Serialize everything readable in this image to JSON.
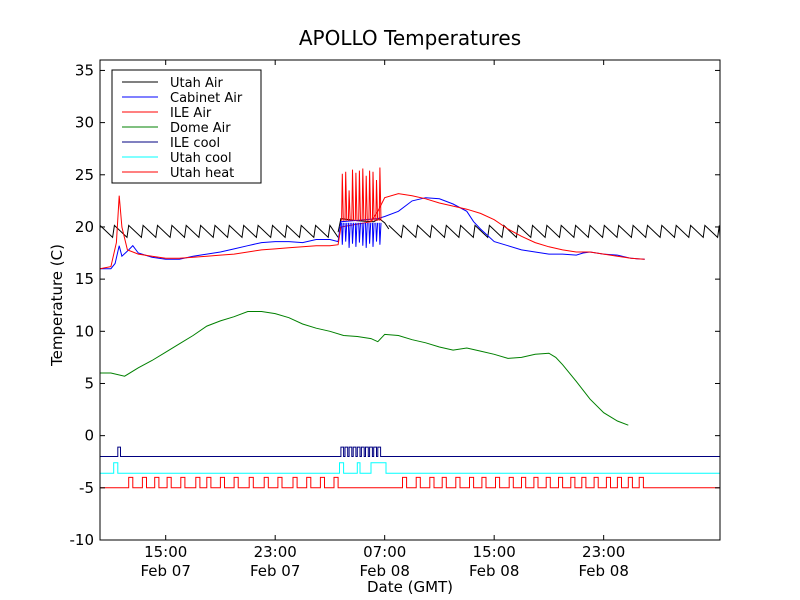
{
  "chart_data": {
    "type": "line",
    "title": "APOLLO Temperatures",
    "xlabel": "Date (GMT)",
    "ylabel": "Temperature (C)",
    "ylim": [
      -10,
      36
    ],
    "xlim": [
      10.2,
      55.5
    ],
    "grid": false,
    "legend_position": "top-left",
    "yticks": [
      -10,
      -5,
      0,
      5,
      10,
      15,
      20,
      25,
      30,
      35
    ],
    "xticks": [
      {
        "x": 15,
        "line1": "15:00",
        "line2": "Feb 07"
      },
      {
        "x": 23,
        "line1": "23:00",
        "line2": "Feb 07"
      },
      {
        "x": 31,
        "line1": "07:00",
        "line2": "Feb 08"
      },
      {
        "x": 39,
        "line1": "15:00",
        "line2": "Feb 08"
      },
      {
        "x": 47,
        "line1": "23:00",
        "line2": "Feb 08"
      }
    ],
    "x_units": "hours since Feb 07 00:00 GMT",
    "series": [
      {
        "name": "Utah Air",
        "color": "#000000",
        "kind": "sawtooth",
        "base": 19.2,
        "amp": 1.0,
        "period": 1.05,
        "segments": [
          [
            10.2,
            27.6
          ],
          [
            31.3,
            55.5
          ]
        ],
        "points": [
          [
            27.6,
            19.5
          ],
          [
            27.8,
            20.8
          ],
          [
            29.0,
            20.6
          ],
          [
            30.2,
            20.5
          ],
          [
            30.6,
            20.8
          ],
          [
            31.0,
            20.4
          ],
          [
            31.3,
            19.8
          ]
        ]
      },
      {
        "name": "Cabinet Air",
        "color": "#0000ff",
        "kind": "line",
        "points": [
          [
            10.2,
            16.0
          ],
          [
            11.0,
            16.0
          ],
          [
            11.3,
            16.5
          ],
          [
            11.6,
            18.2
          ],
          [
            11.8,
            17.2
          ],
          [
            12.3,
            17.8
          ],
          [
            12.6,
            18.2
          ],
          [
            13.0,
            17.5
          ],
          [
            14.0,
            17.1
          ],
          [
            15.0,
            16.9
          ],
          [
            16.0,
            16.9
          ],
          [
            17.0,
            17.2
          ],
          [
            18.0,
            17.4
          ],
          [
            19.0,
            17.6
          ],
          [
            20.0,
            17.9
          ],
          [
            21.0,
            18.2
          ],
          [
            22.0,
            18.5
          ],
          [
            23.0,
            18.6
          ],
          [
            24.0,
            18.6
          ],
          [
            25.0,
            18.5
          ],
          [
            26.0,
            18.8
          ],
          [
            27.0,
            18.8
          ],
          [
            27.6,
            18.6
          ],
          [
            27.8,
            20.5
          ],
          [
            30.5,
            20.8
          ],
          [
            31.0,
            21.0
          ],
          [
            32.0,
            21.5
          ],
          [
            33.0,
            22.5
          ],
          [
            34.0,
            22.8
          ],
          [
            35.0,
            22.7
          ],
          [
            36.0,
            22.2
          ],
          [
            37.0,
            21.5
          ],
          [
            37.5,
            20.5
          ],
          [
            38.0,
            19.8
          ],
          [
            38.5,
            19.2
          ],
          [
            39.0,
            18.6
          ],
          [
            40.0,
            18.2
          ],
          [
            41.0,
            17.8
          ],
          [
            42.0,
            17.6
          ],
          [
            43.0,
            17.4
          ],
          [
            44.0,
            17.4
          ],
          [
            45.0,
            17.3
          ],
          [
            45.5,
            17.5
          ],
          [
            46.0,
            17.6
          ],
          [
            47.0,
            17.4
          ],
          [
            48.0,
            17.3
          ],
          [
            49.0,
            17.0
          ],
          [
            50.0,
            16.9
          ]
        ]
      },
      {
        "name": "ILE Air",
        "color": "#ff0000",
        "kind": "line",
        "points": [
          [
            10.2,
            16.0
          ],
          [
            11.0,
            16.2
          ],
          [
            11.4,
            18.5
          ],
          [
            11.6,
            23.0
          ],
          [
            11.8,
            20.0
          ],
          [
            12.2,
            17.8
          ],
          [
            13.0,
            17.4
          ],
          [
            14.0,
            17.2
          ],
          [
            15.0,
            17.0
          ],
          [
            16.0,
            17.0
          ],
          [
            17.0,
            17.1
          ],
          [
            18.0,
            17.2
          ],
          [
            19.0,
            17.3
          ],
          [
            20.0,
            17.4
          ],
          [
            21.0,
            17.6
          ],
          [
            22.0,
            17.8
          ],
          [
            23.0,
            17.9
          ],
          [
            24.0,
            18.0
          ],
          [
            25.0,
            18.1
          ],
          [
            26.0,
            18.2
          ],
          [
            27.0,
            18.2
          ],
          [
            27.6,
            18.3
          ],
          [
            27.8,
            20.0
          ],
          [
            30.0,
            20.5
          ],
          [
            30.5,
            21.5
          ],
          [
            31.0,
            22.8
          ],
          [
            32.0,
            23.2
          ],
          [
            33.0,
            23.0
          ],
          [
            34.0,
            22.7
          ],
          [
            35.0,
            22.3
          ],
          [
            36.0,
            22.0
          ],
          [
            37.0,
            21.7
          ],
          [
            38.0,
            21.3
          ],
          [
            39.0,
            20.7
          ],
          [
            40.0,
            19.8
          ],
          [
            41.0,
            19.1
          ],
          [
            42.0,
            18.5
          ],
          [
            43.0,
            18.1
          ],
          [
            44.0,
            17.8
          ],
          [
            45.0,
            17.6
          ],
          [
            46.0,
            17.6
          ],
          [
            47.0,
            17.4
          ],
          [
            48.0,
            17.2
          ],
          [
            49.0,
            17.0
          ],
          [
            50.0,
            16.9
          ]
        ]
      },
      {
        "name": "Dome Air",
        "color": "#008000",
        "kind": "line",
        "points": [
          [
            10.2,
            6.0
          ],
          [
            11.0,
            6.0
          ],
          [
            12.0,
            5.7
          ],
          [
            13.0,
            6.5
          ],
          [
            14.0,
            7.2
          ],
          [
            15.0,
            8.0
          ],
          [
            16.0,
            8.8
          ],
          [
            17.0,
            9.6
          ],
          [
            18.0,
            10.5
          ],
          [
            19.0,
            11.0
          ],
          [
            20.0,
            11.4
          ],
          [
            21.0,
            11.9
          ],
          [
            22.0,
            11.9
          ],
          [
            23.0,
            11.7
          ],
          [
            24.0,
            11.3
          ],
          [
            25.0,
            10.7
          ],
          [
            26.0,
            10.3
          ],
          [
            27.0,
            10.0
          ],
          [
            28.0,
            9.6
          ],
          [
            29.0,
            9.5
          ],
          [
            30.0,
            9.3
          ],
          [
            30.5,
            9.0
          ],
          [
            31.0,
            9.7
          ],
          [
            32.0,
            9.6
          ],
          [
            33.0,
            9.2
          ],
          [
            34.0,
            8.9
          ],
          [
            35.0,
            8.5
          ],
          [
            36.0,
            8.2
          ],
          [
            37.0,
            8.4
          ],
          [
            38.0,
            8.1
          ],
          [
            39.0,
            7.8
          ],
          [
            40.0,
            7.4
          ],
          [
            41.0,
            7.5
          ],
          [
            42.0,
            7.8
          ],
          [
            43.0,
            7.9
          ],
          [
            43.5,
            7.5
          ],
          [
            44.0,
            6.8
          ],
          [
            45.0,
            5.2
          ],
          [
            46.0,
            3.5
          ],
          [
            47.0,
            2.2
          ],
          [
            48.0,
            1.4
          ],
          [
            48.8,
            1.0
          ]
        ]
      },
      {
        "name": "ILE cool",
        "color": "#000080",
        "kind": "step",
        "base": -2.0,
        "high": -1.1,
        "pulses": [
          [
            11.5,
            11.7
          ],
          [
            27.8,
            28.0
          ],
          [
            28.1,
            28.3
          ],
          [
            28.4,
            28.6
          ],
          [
            28.7,
            28.9
          ],
          [
            29.0,
            29.2
          ],
          [
            29.3,
            29.5
          ],
          [
            29.6,
            29.8
          ],
          [
            29.9,
            30.1
          ],
          [
            30.2,
            30.4
          ],
          [
            30.5,
            30.7
          ]
        ]
      },
      {
        "name": "Utah cool",
        "color": "#00ffff",
        "kind": "step",
        "base": -3.6,
        "high": -2.6,
        "pulses": [
          [
            11.2,
            11.5
          ],
          [
            27.7,
            28.0
          ],
          [
            29.0,
            29.2
          ],
          [
            30.0,
            31.1
          ]
        ]
      },
      {
        "name": "Utah heat",
        "color": "#ff0000",
        "kind": "step",
        "base": -5.0,
        "high": -4.0,
        "pulses": [
          [
            12.3,
            12.6
          ],
          [
            13.3,
            13.6
          ],
          [
            14.2,
            14.5
          ],
          [
            15.1,
            15.4
          ],
          [
            16.1,
            16.4
          ],
          [
            17.2,
            17.5
          ],
          [
            18.0,
            18.3
          ],
          [
            19.0,
            19.3
          ],
          [
            20.0,
            20.3
          ],
          [
            21.1,
            21.4
          ],
          [
            22.2,
            22.5
          ],
          [
            23.2,
            23.5
          ],
          [
            24.3,
            24.6
          ],
          [
            25.3,
            25.6
          ],
          [
            26.3,
            26.6
          ],
          [
            27.3,
            27.6
          ],
          [
            32.3,
            32.6
          ],
          [
            33.3,
            33.6
          ],
          [
            34.3,
            34.6
          ],
          [
            35.2,
            35.5
          ],
          [
            36.2,
            36.5
          ],
          [
            37.2,
            37.5
          ],
          [
            38.1,
            38.4
          ],
          [
            39.1,
            39.4
          ],
          [
            40.1,
            40.4
          ],
          [
            41.0,
            41.3
          ],
          [
            41.9,
            42.2
          ],
          [
            42.8,
            43.1
          ],
          [
            43.7,
            44.0
          ],
          [
            44.6,
            44.9
          ],
          [
            45.4,
            45.7
          ],
          [
            46.3,
            46.6
          ],
          [
            47.2,
            47.5
          ],
          [
            48.0,
            48.3
          ],
          [
            48.8,
            49.1
          ],
          [
            49.6,
            49.9
          ]
        ]
      },
      {
        "name": "ILE Air spikes",
        "color": "#ff0000",
        "kind": "spikes",
        "legend": false,
        "base": 20.6,
        "heights": [
          25.1,
          25.3,
          23.5,
          25.5,
          25.2,
          25.4,
          25.6,
          24.9,
          25.4,
          25.3,
          24.5,
          25.7
        ],
        "xs": [
          27.9,
          28.15,
          28.4,
          28.65,
          28.9,
          29.15,
          29.4,
          29.65,
          29.9,
          30.15,
          30.4,
          30.65
        ]
      },
      {
        "name": "Cabinet Air dips",
        "color": "#0000ff",
        "kind": "dips",
        "legend": false,
        "base": 20.4,
        "lows": [
          18.3,
          18.6,
          18.0,
          18.4,
          18.1,
          18.5,
          18.2,
          18.0,
          18.4,
          18.1,
          18.6,
          18.3
        ],
        "xs": [
          27.9,
          28.15,
          28.4,
          28.65,
          28.9,
          29.15,
          29.4,
          29.65,
          29.9,
          30.15,
          30.4,
          30.65
        ]
      }
    ]
  }
}
